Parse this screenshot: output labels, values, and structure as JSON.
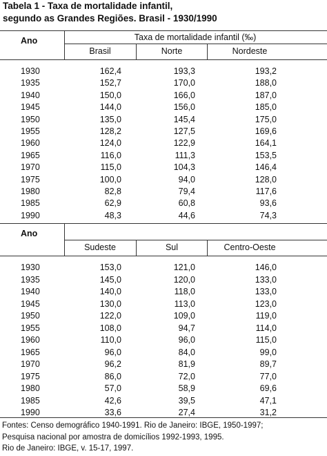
{
  "title": {
    "line1": "Tabela 1 - Taxa de mortalidade infantil,",
    "line2": "segundo as Grandes Regiões. Brasil - 1930/1990"
  },
  "tables": [
    {
      "year_header": "Ano",
      "group_header": "Taxa de mortalidade infantil (‰)",
      "columns": [
        "Brasil",
        "Norte",
        "Nordeste"
      ],
      "rows": [
        [
          "1930",
          "162,4",
          "193,3",
          "193,2"
        ],
        [
          "1935",
          "152,7",
          "170,0",
          "188,0"
        ],
        [
          "1940",
          "150,0",
          "166,0",
          "187,0"
        ],
        [
          "1945",
          "144,0",
          "156,0",
          "185,0"
        ],
        [
          "1950",
          "135,0",
          "145,4",
          "175,0"
        ],
        [
          "1955",
          "128,2",
          "127,5",
          "169,6"
        ],
        [
          "1960",
          "124,0",
          "122,9",
          "164,1"
        ],
        [
          "1965",
          "116,0",
          "111,3",
          "153,5"
        ],
        [
          "1970",
          "115,0",
          "104,3",
          "146,4"
        ],
        [
          "1975",
          "100,0",
          "94,0",
          "128,0"
        ],
        [
          "1980",
          "82,8",
          "79,4",
          "117,6"
        ],
        [
          "1985",
          "62,9",
          "60,8",
          "93,6"
        ],
        [
          "1990",
          "48,3",
          "44,6",
          "74,3"
        ]
      ]
    },
    {
      "year_header": "Ano",
      "columns": [
        "Sudeste",
        "Sul",
        "Centro-Oeste"
      ],
      "rows": [
        [
          "1930",
          "153,0",
          "121,0",
          "146,0"
        ],
        [
          "1935",
          "145,0",
          "120,0",
          "133,0"
        ],
        [
          "1940",
          "140,0",
          "118,0",
          "133,0"
        ],
        [
          "1945",
          "130,0",
          "113,0",
          "123,0"
        ],
        [
          "1950",
          "122,0",
          "109,0",
          "119,0"
        ],
        [
          "1955",
          "108,0",
          "94,7",
          "114,0"
        ],
        [
          "1960",
          "110,0",
          "96,0",
          "115,0"
        ],
        [
          "1965",
          "96,0",
          "84,0",
          "99,0"
        ],
        [
          "1970",
          "96,2",
          "81,9",
          "89,7"
        ],
        [
          "1975",
          "86,0",
          "72,0",
          "77,0"
        ],
        [
          "1980",
          "57,0",
          "58,9",
          "69,6"
        ],
        [
          "1985",
          "42,6",
          "39,5",
          "47,1"
        ],
        [
          "1990",
          "33,6",
          "27,4",
          "31,2"
        ]
      ]
    }
  ],
  "footer": [
    "Fontes: Censo demográfico 1940-1991. Rio de Janeiro: IBGE, 1950-1997;",
    "Pesquisa nacional por amostra de domicílios 1992-1993, 1995.",
    "Rio de Janeiro: IBGE, v. 15-17, 1997."
  ]
}
